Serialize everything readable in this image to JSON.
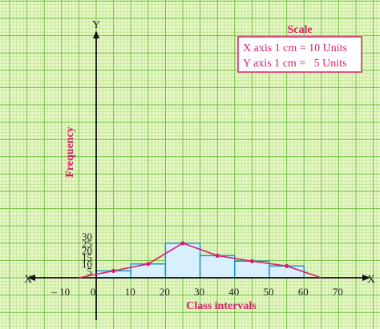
{
  "chart_data": {
    "type": "bar",
    "subtype": "histogram-with-frequency-polygon",
    "xlabel": "Class intervals",
    "ylabel": "Frequency",
    "x_axis_letter": "X",
    "x_axis_neg_letter": "X'",
    "y_axis_letter": "Y",
    "xlim": [
      -10,
      70
    ],
    "ylim": [
      0,
      30
    ],
    "x_ticks": [
      "– 10",
      "0",
      "10",
      "20",
      "30",
      "40",
      "50",
      "60",
      "70"
    ],
    "y_ticks": [
      "5",
      "10",
      "15",
      "20",
      "25",
      "30"
    ],
    "bins": [
      {
        "from": 0,
        "to": 10,
        "value": 5
      },
      {
        "from": 10,
        "to": 20,
        "value": 10
      },
      {
        "from": 20,
        "to": 30,
        "value": 25
      },
      {
        "from": 30,
        "to": 40,
        "value": 16
      },
      {
        "from": 40,
        "to": 50,
        "value": 12
      },
      {
        "from": 50,
        "to": 60,
        "value": 8.5
      }
    ],
    "polygon": {
      "x": [
        -5,
        5,
        15,
        25,
        35,
        45,
        55,
        65
      ],
      "y": [
        0,
        5,
        10,
        25,
        16,
        12,
        8.5,
        0
      ]
    },
    "grid": true,
    "scale_box": {
      "title": "Scale",
      "lines": [
        "X axis 1 cm = 10 Units",
        "Y axis 1 cm =   5 Units"
      ]
    },
    "colors": {
      "background": "#e6f7c7",
      "grid_minor": "#b5dd7c",
      "grid_major": "#6cbf3c",
      "bar_fill": "#d8f0fb",
      "bar_stroke": "#1e94c8",
      "polygon": "#d6216a",
      "label": "#d6216a"
    }
  }
}
